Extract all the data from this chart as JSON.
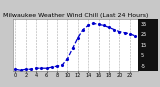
{
  "title": "Milwaukee Weather Wind Chill (Last 24 Hours)",
  "fig_bg_color": "#c8c8c8",
  "plot_bg_color": "#ffffff",
  "line_color": "#0000cc",
  "line_style": "--",
  "line_width": 0.9,
  "marker": ".",
  "marker_size": 2.5,
  "grid_color": "#888888",
  "grid_style": "--",
  "x_values": [
    0,
    1,
    2,
    3,
    4,
    5,
    6,
    7,
    8,
    9,
    10,
    11,
    12,
    13,
    14,
    15,
    16,
    17,
    18,
    19,
    20,
    21,
    22,
    23
  ],
  "y_values": [
    -8,
    -9,
    -8,
    -8,
    -7,
    -7,
    -7,
    -6,
    -5,
    -4,
    2,
    12,
    22,
    30,
    34,
    36,
    35,
    34,
    32,
    30,
    28,
    27,
    26,
    24
  ],
  "ylim": [
    -10,
    40
  ],
  "xlim": [
    -0.5,
    23.5
  ],
  "ytick_labels": [
    "35",
    "25",
    "15",
    "5",
    "-5"
  ],
  "ytick_values": [
    35,
    25,
    15,
    5,
    -5
  ],
  "xtick_step": 2,
  "title_fontsize": 4.5,
  "tick_fontsize": 3.5,
  "right_panel_color": "#111111",
  "right_label_color": "#ffffff"
}
